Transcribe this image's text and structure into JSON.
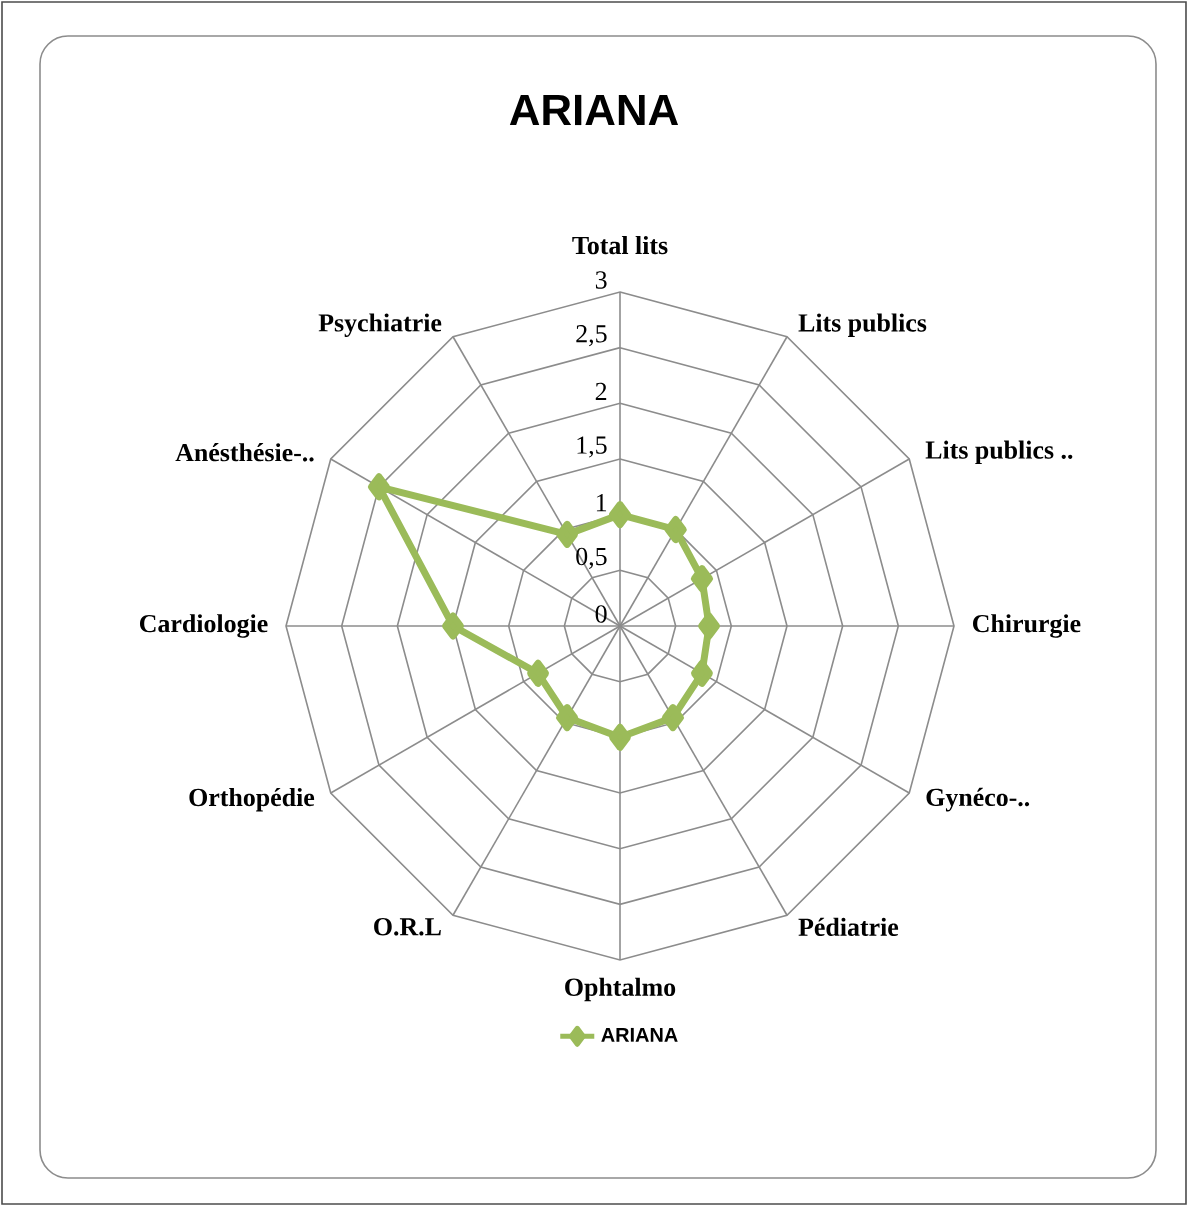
{
  "chart_data": {
    "type": "radar",
    "title": "ARIANA",
    "categories": [
      "Total lits",
      "Lits publics",
      "Lits publics ..",
      "Chirurgie",
      "Gynéco-..",
      "Pédiatrie",
      "Ophtalmo",
      "O.R.L",
      "Orthopédie",
      "Cardiologie",
      "Anésthésie-..",
      "Psychiatrie"
    ],
    "series": [
      {
        "name": "ARIANA",
        "color": "#9bbb59",
        "values": [
          1,
          1,
          0.85,
          0.8,
          0.85,
          0.95,
          1,
          0.95,
          0.85,
          1.5,
          2.5,
          0.95
        ]
      }
    ],
    "ylim": [
      0,
      3
    ],
    "yticks": [
      0,
      {
        "value": 0.5,
        "label": "0,5"
      },
      1,
      {
        "value": 1.5,
        "label": "1,5"
      },
      2,
      {
        "value": 2.5,
        "label": "2,5"
      },
      3
    ],
    "marker": "diamond",
    "legend": "bottom",
    "grid": true
  }
}
